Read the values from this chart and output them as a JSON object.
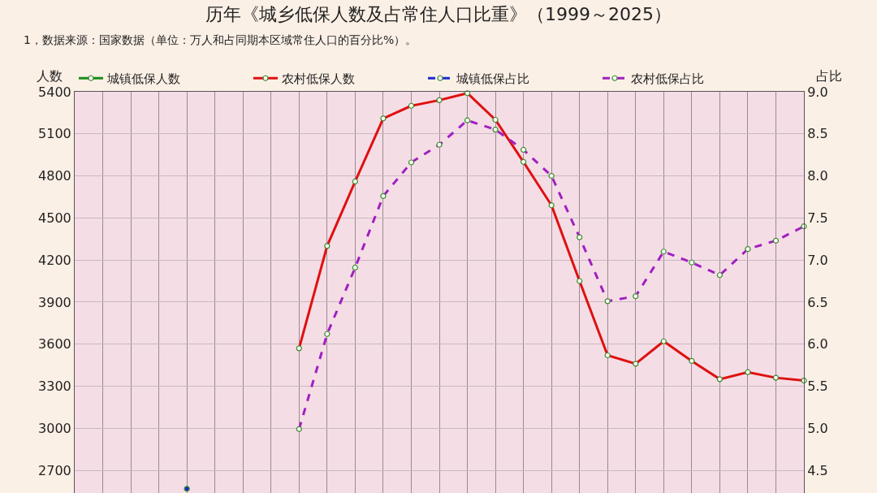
{
  "chart_data": {
    "type": "line",
    "title": "历年《城乡低保人数及占常住人口比重》（1999～2025）",
    "subtitle": "1，数据来源：国家数据（单位：万人和占同期本区域常住人口的百分比%）。",
    "ylabel": "人数",
    "y2label": "占比",
    "categories": [
      null,
      null,
      null,
      null,
      null,
      null,
      null,
      null,
      null,
      null,
      null,
      null,
      null,
      null,
      null,
      null,
      null,
      null,
      null,
      null,
      null,
      null,
      null,
      null,
      null,
      null,
      null
    ],
    "series": [
      {
        "name": "城镇低保人数",
        "color": "#1a8c1a",
        "line_style": "solid",
        "values": [
          null,
          null,
          null,
          null,
          null,
          null,
          null,
          null,
          null,
          null,
          null,
          null,
          null,
          null,
          null,
          null,
          null,
          null,
          null,
          null,
          null,
          null,
          null,
          null,
          null,
          null,
          null
        ]
      },
      {
        "name": "农村低保人数",
        "color": "#e01010",
        "line_style": "solid",
        "values": [
          null,
          null,
          null,
          null,
          null,
          null,
          null,
          null,
          3570,
          4300,
          4760,
          5210,
          5300,
          5340,
          5390,
          5200,
          4900,
          4590,
          4050,
          3520,
          3460,
          3620,
          3480,
          3350,
          3400,
          3360,
          3340
        ]
      },
      {
        "name": "城镇低保占比",
        "color": "#1a2ad0",
        "line_style": "dashed",
        "axis": "y2",
        "values": [
          null,
          null,
          null,
          null,
          4.28,
          null,
          null,
          null,
          null,
          null,
          null,
          null,
          null,
          null,
          null,
          null,
          null,
          null,
          null,
          null,
          null,
          null,
          null,
          null,
          null,
          null,
          null
        ]
      },
      {
        "name": "农村低保占比",
        "color": "#a020c0",
        "line_style": "dashed",
        "axis": "y2",
        "values": [
          null,
          null,
          null,
          null,
          null,
          null,
          null,
          null,
          4.99,
          6.12,
          6.91,
          7.76,
          8.16,
          8.37,
          8.66,
          8.55,
          8.31,
          8.0,
          7.27,
          6.51,
          6.57,
          7.1,
          6.97,
          6.82,
          7.13,
          7.23,
          7.4
        ]
      }
    ],
    "ylim": [
      2538,
      5400
    ],
    "yticks": [
      2700,
      3000,
      3300,
      3600,
      3900,
      4200,
      4500,
      4800,
      5100,
      5400
    ],
    "y2lim": [
      4.23,
      9.0
    ],
    "y2ticks": [
      {
        "value": 4.5,
        "label": "4.5"
      },
      {
        "value": 5.0,
        "label": "5.0"
      },
      {
        "value": 5.5,
        "label": "5.5"
      },
      {
        "value": 6.0,
        "label": "6.0"
      },
      {
        "value": 6.5,
        "label": "6.5"
      },
      {
        "value": 7.0,
        "label": "7.0"
      },
      {
        "value": 7.5,
        "label": "7.5"
      },
      {
        "value": 8.0,
        "label": "8.0"
      },
      {
        "value": 8.5,
        "label": "8.5"
      },
      {
        "value": 9.0,
        "label": "9.0"
      }
    ],
    "grid": true,
    "legend": "top",
    "marker": "circle",
    "tick_labels": "y"
  }
}
